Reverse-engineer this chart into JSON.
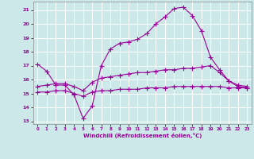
{
  "xlabel": "Windchill (Refroidissement éolien,°C)",
  "background_color": "#cde8e8",
  "grid_color": "#b0d8d8",
  "line_color": "#990099",
  "x_ticks": [
    0,
    1,
    2,
    3,
    4,
    5,
    6,
    7,
    8,
    9,
    10,
    11,
    12,
    13,
    14,
    15,
    16,
    17,
    18,
    19,
    20,
    21,
    22,
    23
  ],
  "ylim": [
    12.8,
    21.6
  ],
  "y_ticks": [
    13,
    14,
    15,
    16,
    17,
    18,
    19,
    20,
    21
  ],
  "line1_x": [
    0,
    1,
    2,
    3,
    4,
    5,
    6,
    7,
    8,
    9,
    10,
    11,
    12,
    13,
    14,
    15,
    16,
    17,
    18,
    19,
    20,
    21,
    22,
    23
  ],
  "line1_y": [
    17.1,
    16.6,
    15.6,
    15.6,
    14.9,
    13.2,
    14.1,
    17.0,
    18.2,
    18.6,
    18.7,
    18.9,
    19.3,
    20.0,
    20.5,
    21.1,
    21.2,
    20.6,
    19.5,
    17.6,
    16.7,
    15.9,
    15.5,
    15.4
  ],
  "line2_x": [
    0,
    1,
    2,
    3,
    4,
    5,
    6,
    7,
    8,
    9,
    10,
    11,
    12,
    13,
    14,
    15,
    16,
    17,
    18,
    19,
    20,
    21,
    22,
    23
  ],
  "line2_y": [
    15.5,
    15.6,
    15.7,
    15.7,
    15.5,
    15.2,
    15.8,
    16.1,
    16.2,
    16.3,
    16.4,
    16.5,
    16.5,
    16.6,
    16.7,
    16.7,
    16.8,
    16.8,
    16.9,
    17.0,
    16.5,
    15.9,
    15.6,
    15.5
  ],
  "line3_x": [
    0,
    1,
    2,
    3,
    4,
    5,
    6,
    7,
    8,
    9,
    10,
    11,
    12,
    13,
    14,
    15,
    16,
    17,
    18,
    19,
    20,
    21,
    22,
    23
  ],
  "line3_y": [
    15.1,
    15.1,
    15.2,
    15.2,
    15.0,
    14.8,
    15.1,
    15.2,
    15.2,
    15.3,
    15.3,
    15.3,
    15.4,
    15.4,
    15.4,
    15.5,
    15.5,
    15.5,
    15.5,
    15.5,
    15.5,
    15.4,
    15.4,
    15.4
  ]
}
